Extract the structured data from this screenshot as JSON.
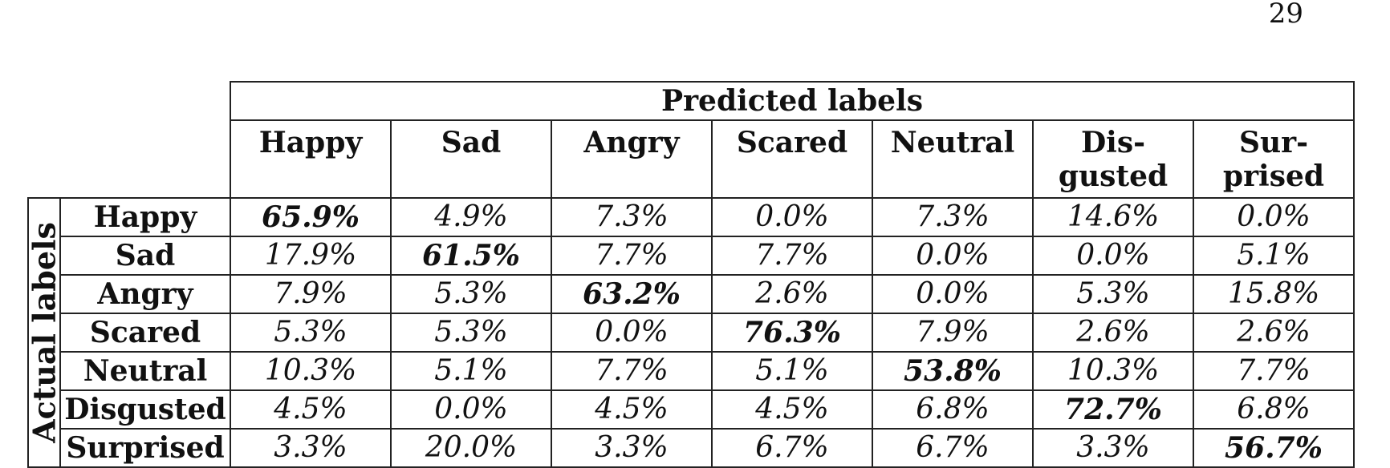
{
  "page_number": "29",
  "table": {
    "predicted_header": "Predicted labels",
    "actual_header": "Actual labels",
    "columns": [
      {
        "line1": "Happy",
        "line2": ""
      },
      {
        "line1": "Sad",
        "line2": ""
      },
      {
        "line1": "Angry",
        "line2": ""
      },
      {
        "line1": "Scared",
        "line2": ""
      },
      {
        "line1": "Neutral",
        "line2": ""
      },
      {
        "line1": "Dis-",
        "line2": "gusted"
      },
      {
        "line1": "Sur-",
        "line2": "prised"
      }
    ],
    "rows": [
      {
        "label": "Happy",
        "cells": [
          "65.9%",
          "4.9%",
          "7.3%",
          "0.0%",
          "7.3%",
          "14.6%",
          "0.0%"
        ]
      },
      {
        "label": "Sad",
        "cells": [
          "17.9%",
          "61.5%",
          "7.7%",
          "7.7%",
          "0.0%",
          "0.0%",
          "5.1%"
        ]
      },
      {
        "label": "Angry",
        "cells": [
          "7.9%",
          "5.3%",
          "63.2%",
          "2.6%",
          "0.0%",
          "5.3%",
          "15.8%"
        ]
      },
      {
        "label": "Scared",
        "cells": [
          "5.3%",
          "5.3%",
          "0.0%",
          "76.3%",
          "7.9%",
          "2.6%",
          "2.6%"
        ]
      },
      {
        "label": "Neutral",
        "cells": [
          "10.3%",
          "5.1%",
          "7.7%",
          "5.1%",
          "53.8%",
          "10.3%",
          "7.7%"
        ]
      },
      {
        "label": "Disgusted",
        "cells": [
          "4.5%",
          "0.0%",
          "4.5%",
          "4.5%",
          "6.8%",
          "72.7%",
          "6.8%"
        ]
      },
      {
        "label": "Surprised",
        "cells": [
          "3.3%",
          "20.0%",
          "3.3%",
          "6.7%",
          "6.7%",
          "3.3%",
          "56.7%"
        ]
      }
    ]
  }
}
